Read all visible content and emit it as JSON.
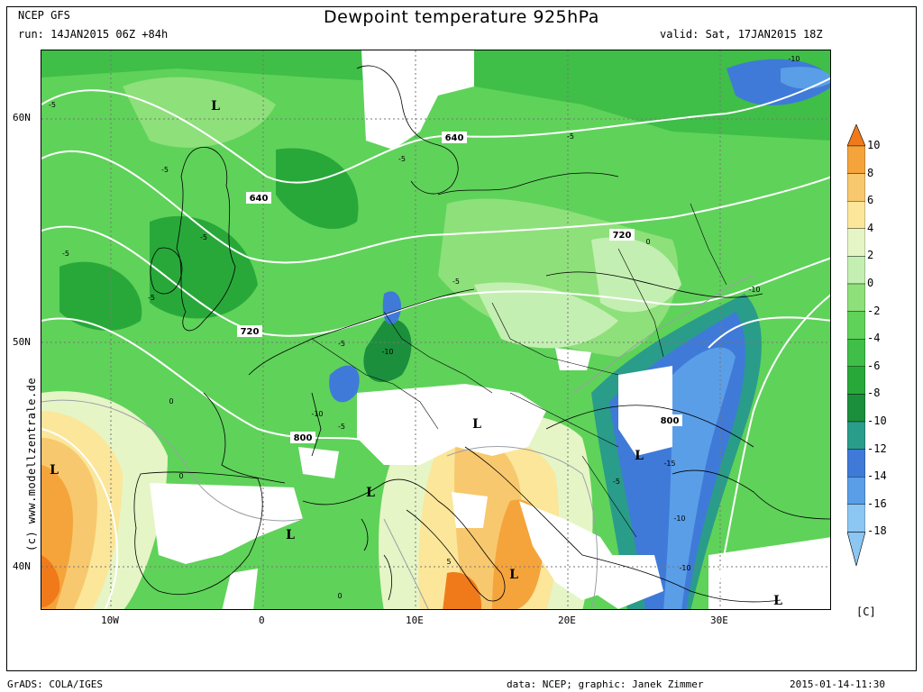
{
  "header": {
    "model": "NCEP GFS",
    "run": "run: 14JAN2015 06Z +84h",
    "title": "Dewpoint temperature 925hPa",
    "valid": "valid: Sat, 17JAN2015 18Z"
  },
  "axes": {
    "lat_labels": [
      "60N",
      "50N",
      "40N"
    ],
    "lon_labels": [
      "10W",
      "0",
      "10E",
      "20E",
      "30E"
    ]
  },
  "colorbar": {
    "unit": "[C]",
    "ticks": [
      "10",
      "8",
      "6",
      "4",
      "2",
      "0",
      "-2",
      "-4",
      "-6",
      "-8",
      "-10",
      "-12",
      "-14",
      "-16",
      "-18"
    ],
    "colors": {
      "10": "#f07a1a",
      "8": "#f5a43c",
      "6": "#f8c86e",
      "4": "#fbe69a",
      "2": "#e6f5c6",
      "0": "#c4efb2",
      "-2": "#8ee07a",
      "-4": "#5fd25a",
      "-6": "#3fbe48",
      "-8": "#29a83a",
      "-10": "#1b8f3c",
      "-12": "#2a9c8a",
      "-14": "#3f7ad8",
      "-16": "#5a9ee8",
      "-18": "#8cc6f2"
    }
  },
  "map_labels": {
    "lows": [
      "L",
      "L",
      "L",
      "L",
      "L",
      "L",
      "L",
      "L"
    ],
    "geopotential": [
      "640",
      "640",
      "720",
      "720",
      "800",
      "800"
    ],
    "dewpoint": [
      "-5",
      "-5",
      "-5",
      "-5",
      "-5",
      "-5",
      "-5",
      "-5",
      "-5",
      "-5",
      "-5",
      "-10",
      "-10",
      "-10",
      "-10",
      "-10",
      "-10",
      "-15",
      "0",
      "0",
      "0",
      "0",
      "5"
    ]
  },
  "watermark": "(c) www.modellzentrale.de",
  "footer": {
    "left": "GrADS: COLA/IGES",
    "center": "data: NCEP; graphic: Janek Zimmer",
    "right": "2015-01-14-11:30"
  }
}
